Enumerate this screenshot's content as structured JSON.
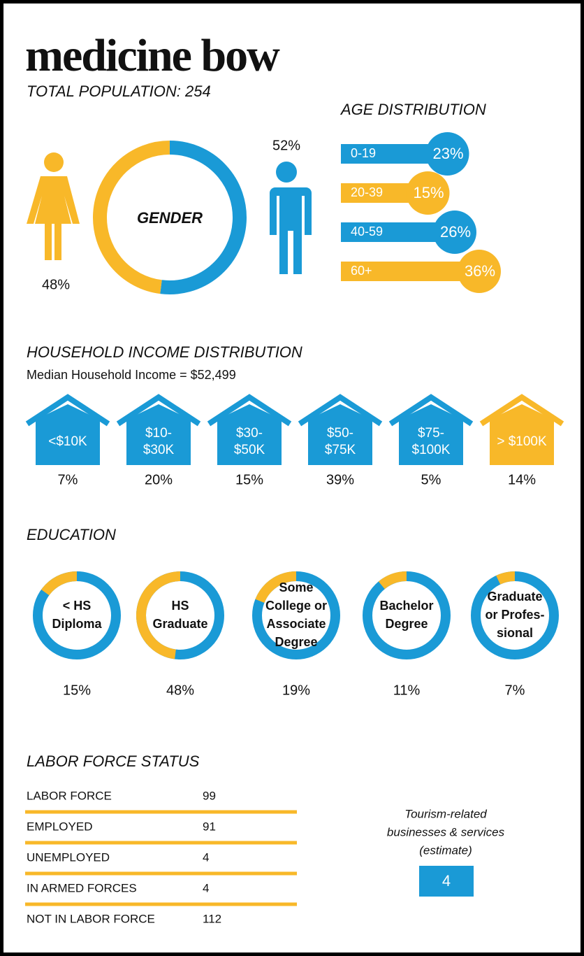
{
  "title": "medicine bow",
  "population": {
    "label": "TOTAL POPULATION:",
    "value": 254
  },
  "gender": {
    "label": "GENDER",
    "female": {
      "value": 48,
      "label": "48%",
      "color": "#f8b829"
    },
    "male": {
      "value": 52,
      "label": "52%",
      "color": "#1a9ad6"
    }
  },
  "age": {
    "title": "AGE DISTRIBUTION",
    "groups": [
      {
        "name": "0-19",
        "value": 23,
        "label": "23%",
        "color": "#1a9ad6"
      },
      {
        "name": "20-39",
        "value": 15,
        "label": "15%",
        "color": "#f8b829"
      },
      {
        "name": "40-59",
        "value": 26,
        "label": "26%",
        "color": "#1a9ad6"
      },
      {
        "name": "60+",
        "value": 36,
        "label": "36%",
        "color": "#f8b829"
      }
    ]
  },
  "income": {
    "title": "HOUSEHOLD INCOME DISTRIBUTION",
    "subtitle": "Median Household Income = $52,499",
    "brackets": [
      {
        "lines": [
          "<$10K"
        ],
        "value": 7,
        "label": "7%",
        "color": "#1a9ad6"
      },
      {
        "lines": [
          "$10-",
          "$30K"
        ],
        "value": 20,
        "label": "20%",
        "color": "#1a9ad6"
      },
      {
        "lines": [
          "$30-",
          "$50K"
        ],
        "value": 15,
        "label": "15%",
        "color": "#1a9ad6"
      },
      {
        "lines": [
          "$50-",
          "$75K"
        ],
        "value": 39,
        "label": "39%",
        "color": "#1a9ad6"
      },
      {
        "lines": [
          "$75-",
          "$100K"
        ],
        "value": 5,
        "label": "5%",
        "color": "#1a9ad6"
      },
      {
        "lines": [
          "> $100K"
        ],
        "value": 14,
        "label": "14%",
        "color": "#f8b829"
      }
    ]
  },
  "education": {
    "title": "EDUCATION",
    "levels": [
      {
        "lines": [
          "< HS",
          "Diploma"
        ],
        "value": 15,
        "label": "15%"
      },
      {
        "lines": [
          "HS",
          "Graduate"
        ],
        "value": 48,
        "label": "48%"
      },
      {
        "lines": [
          "Some",
          "College or",
          "Associate",
          "Degree"
        ],
        "value": 19,
        "label": "19%"
      },
      {
        "lines": [
          "Bachelor",
          "Degree"
        ],
        "value": 11,
        "label": "11%"
      },
      {
        "lines": [
          "Graduate",
          "or Profes-",
          "sional"
        ],
        "value": 7,
        "label": "7%"
      }
    ]
  },
  "labor": {
    "title": "LABOR FORCE STATUS",
    "rows": [
      [
        "LABOR FORCE",
        99
      ],
      [
        "EMPLOYED",
        91
      ],
      [
        "UNEMPLOYED",
        4
      ],
      [
        "IN ARMED FORCES",
        4
      ],
      [
        "NOT IN LABOR FORCE",
        112
      ]
    ]
  },
  "tourism": {
    "lines": [
      "Tourism-related",
      "businesses & services",
      "(estimate)"
    ],
    "value": 4
  }
}
